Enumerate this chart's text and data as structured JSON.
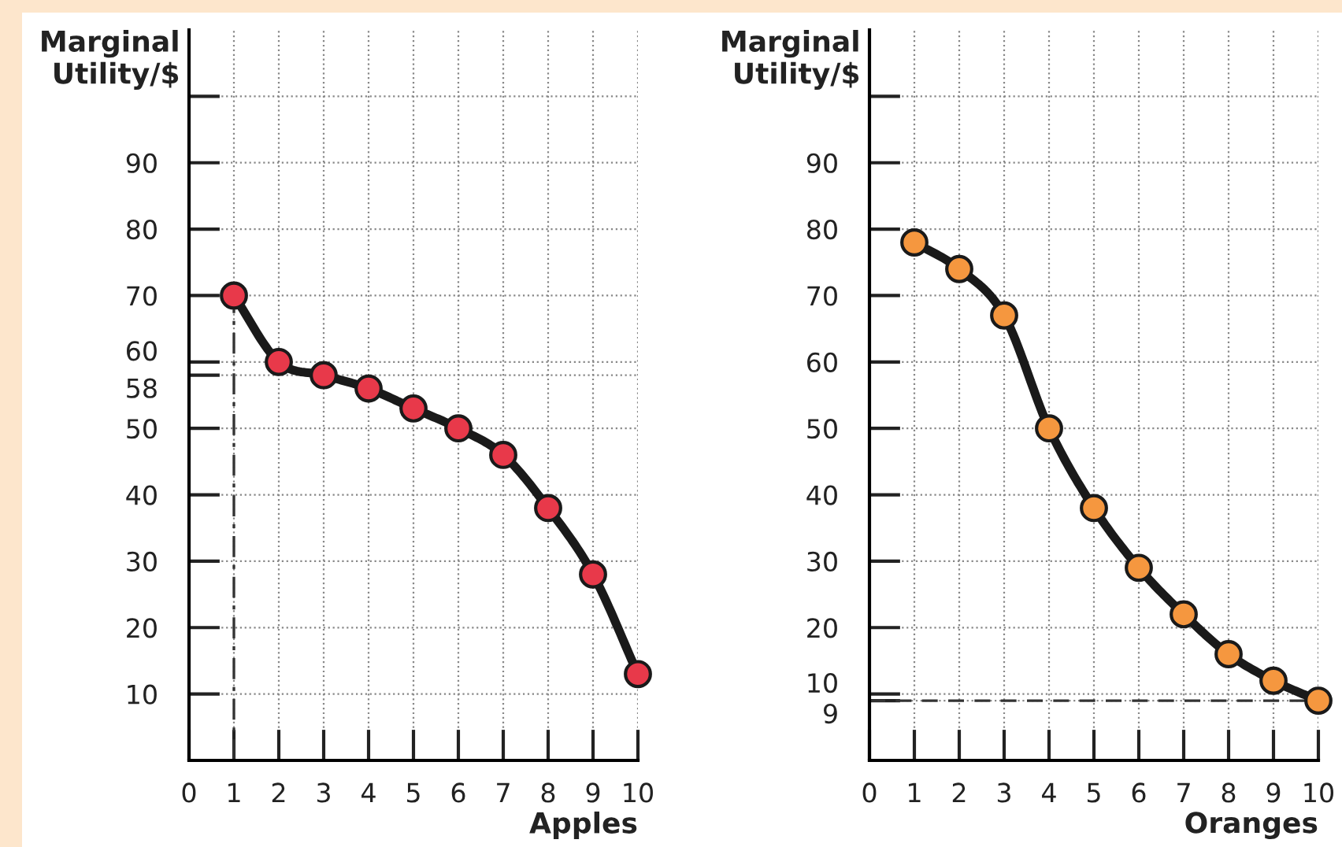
{
  "chart_data": [
    {
      "type": "line",
      "xlabel": "Apples",
      "ylabel": "Marginal\nUtility/$",
      "x": [
        1,
        2,
        3,
        4,
        5,
        6,
        7,
        8,
        9,
        10
      ],
      "series": [
        {
          "color": "#e8394a",
          "values": [
            70,
            60,
            58,
            56,
            53,
            50,
            46,
            38,
            28,
            13
          ]
        }
      ],
      "marker": "circle",
      "line_style": "solid",
      "grid": true,
      "xlim": [
        0,
        10
      ],
      "xticks": [
        0,
        1,
        2,
        3,
        4,
        5,
        6,
        7,
        8,
        9,
        10
      ],
      "ylim": [
        0,
        110
      ],
      "yticks": [
        10,
        20,
        30,
        40,
        50,
        58,
        60,
        70,
        80,
        90,
        {
          "value": 100,
          "label": null
        }
      ],
      "ref_lines": [
        {
          "axis": "x",
          "value": 1,
          "line_style": "dashdot",
          "color": "#333333"
        }
      ]
    },
    {
      "type": "line",
      "xlabel": "Oranges",
      "ylabel": "Marginal\nUtility/$",
      "x": [
        1,
        2,
        3,
        4,
        5,
        6,
        7,
        8,
        9,
        10
      ],
      "series": [
        {
          "color": "#f5973f",
          "values": [
            78,
            74,
            67,
            50,
            38,
            29,
            22,
            16,
            12,
            9
          ]
        }
      ],
      "marker": "circle",
      "line_style": "solid",
      "grid": true,
      "xlim": [
        0,
        10
      ],
      "xticks": [
        0,
        1,
        2,
        3,
        4,
        5,
        6,
        7,
        8,
        9,
        10
      ],
      "ylim": [
        0,
        110
      ],
      "yticks": [
        9,
        10,
        20,
        30,
        40,
        50,
        60,
        70,
        80,
        90,
        {
          "value": 100,
          "label": null
        }
      ],
      "ref_lines": [
        {
          "axis": "y",
          "value": 9,
          "line_style": "dashed",
          "color": "#333333"
        }
      ]
    }
  ]
}
